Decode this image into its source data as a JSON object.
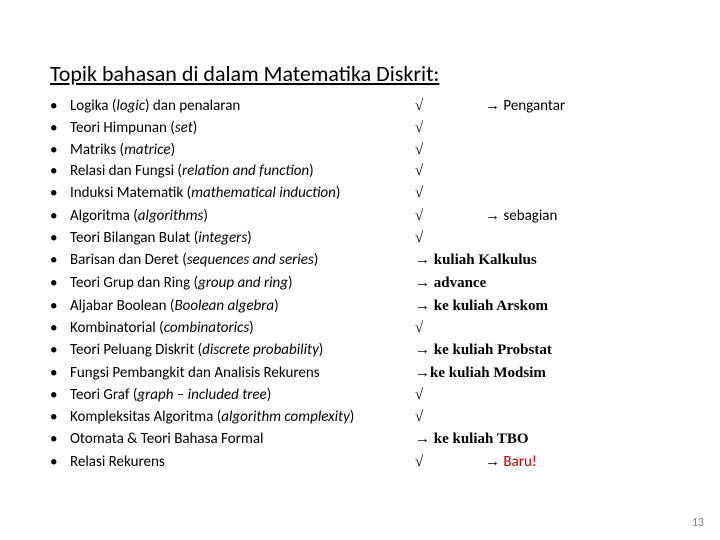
{
  "title": "Topik bahasan di dalam Matematika Diskrit:",
  "items": [
    {
      "topic_pre": "Logika (",
      "topic_it": "logic",
      "topic_post": ")  dan penalaran",
      "status": "√",
      "note_pre": "→",
      "note": " Pengantar",
      "note_offset": true
    },
    {
      "topic_pre": "Teori Himpunan (",
      "topic_it": "set",
      "topic_post": ")",
      "status": "√",
      "note_pre": "",
      "note": ""
    },
    {
      "topic_pre": "Matriks (",
      "topic_it": "matrice",
      "topic_post": ")",
      "status": "√",
      "note_pre": "",
      "note": ""
    },
    {
      "topic_pre": "Relasi dan Fungsi (",
      "topic_it": "relation and function",
      "topic_post": ")",
      "status": "√",
      "note_pre": "",
      "note": ""
    },
    {
      "topic_pre": "Induksi Matematik (",
      "topic_it": "mathematical induction",
      "topic_post": ")",
      "status": "√",
      "note_pre": "",
      "note": ""
    },
    {
      "topic_pre": "Algoritma (",
      "topic_it": "algorithms",
      "topic_post": ")",
      "status": "√",
      "note_pre": "→",
      "note": " sebagian",
      "note_offset": true
    },
    {
      "topic_pre": "Teori Bilangan Bulat (",
      "topic_it": "integers",
      "topic_post": ")",
      "status": "√",
      "note_pre": "",
      "note": ""
    },
    {
      "topic_pre": "Barisan dan Deret (",
      "topic_it": "sequences and series",
      "topic_post": ")",
      "status": "→",
      "note_pre": "",
      "note": " kuliah Kalkulus",
      "status_is_arrow": true
    },
    {
      "topic_pre": "Teori Grup dan Ring (",
      "topic_it": "group and ring",
      "topic_post": ")",
      "status": "→",
      "note_pre": "",
      "note": " advance",
      "status_is_arrow": true
    },
    {
      "topic_pre": "Aljabar Boolean (",
      "topic_it": "Boolean algebra",
      "topic_post": ")",
      "status": "→",
      "note_pre": "",
      "note": " ke kuliah Arskom",
      "status_is_arrow": true
    },
    {
      "topic_pre": "Kombinatorial (",
      "topic_it": "combinatorics",
      "topic_post": ")",
      "status": "√",
      "note_pre": "",
      "note": ""
    },
    {
      "topic_pre": "Teori Peluang Diskrit (",
      "topic_it": "discrete probability",
      "topic_post": ")",
      "status": "→",
      "note_pre": "",
      "note": " ke kuliah Probstat",
      "status_is_arrow": true
    },
    {
      "topic_pre": "Fungsi Pembangkit dan Analisis Rekurens",
      "topic_it": "",
      "topic_post": "",
      "status": "→",
      "note_pre": "",
      "note": "ke kuliah Modsim",
      "status_is_arrow": true
    },
    {
      "topic_pre": "Teori Graf (",
      "topic_it": "graph – included tree",
      "topic_post": ")",
      "status": "√",
      "note_pre": "",
      "note": ""
    },
    {
      "topic_pre": "Kompleksitas Algoritma (",
      "topic_it": "algorithm complexity",
      "topic_post": ")",
      "status": "√",
      "note_pre": "",
      "note": ""
    },
    {
      "topic_pre": "Otomata & Teori Bahasa Formal",
      "topic_it": "",
      "topic_post": "",
      "status": "→",
      "note_pre": "",
      "note": " ke kuliah TBO",
      "status_is_arrow": true
    },
    {
      "topic_pre": "Relasi Rekurens",
      "topic_it": "",
      "topic_post": "",
      "status": "√",
      "note_pre": "→",
      "note": " Baru!",
      "note_offset": true,
      "note_red": true
    }
  ],
  "page_number": "13",
  "colors": {
    "text": "#000000",
    "accent_red": "#c00000",
    "pagenum": "#808080",
    "bg": "#ffffff"
  }
}
